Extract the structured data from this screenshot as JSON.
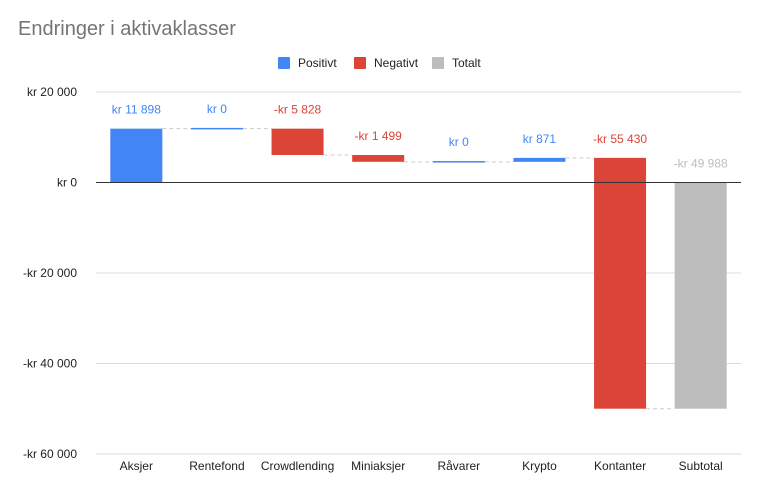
{
  "chart_data": {
    "type": "bar",
    "subtype": "waterfall",
    "title": "Endringer i aktivaklasser",
    "xlabel": "",
    "ylabel": "",
    "ylim": [
      -60000,
      20000
    ],
    "yticks": [
      20000,
      0,
      -20000,
      -40000,
      -60000
    ],
    "ytick_labels": [
      "kr  20 000",
      "kr   0",
      "-kr  20 000",
      "-kr  40 000",
      "-kr  60 000"
    ],
    "grid": true,
    "legend_position": "top",
    "legend": [
      {
        "name": "Positivt",
        "color": "#4285F4"
      },
      {
        "name": "Negativt",
        "color": "#DB4437"
      },
      {
        "name": "Totalt",
        "color": "#BDBDBD"
      }
    ],
    "categories": [
      "Aksjer",
      "Rentefond",
      "Crowdlending",
      "Miniaksjer",
      "Råvarer",
      "Krypto",
      "Kontanter",
      "Subtotal"
    ],
    "values": [
      11898,
      0,
      -5828,
      -1499,
      0,
      871,
      -55430,
      -49988
    ],
    "kinds": [
      "positive",
      "positive",
      "negative",
      "negative",
      "positive",
      "positive",
      "negative",
      "total"
    ],
    "value_labels": [
      "kr  11 898",
      "kr   0",
      "-kr  5 828",
      "-kr  1 499",
      "kr   0",
      "kr   871",
      "-kr  55 430",
      "-kr  49 988"
    ],
    "colors": {
      "positive": "#4285F4",
      "negative": "#DB4437",
      "total": "#BDBDBD",
      "axis": "#333333",
      "grid": "#DDDDDD",
      "connector": "#CCCCCC"
    }
  }
}
